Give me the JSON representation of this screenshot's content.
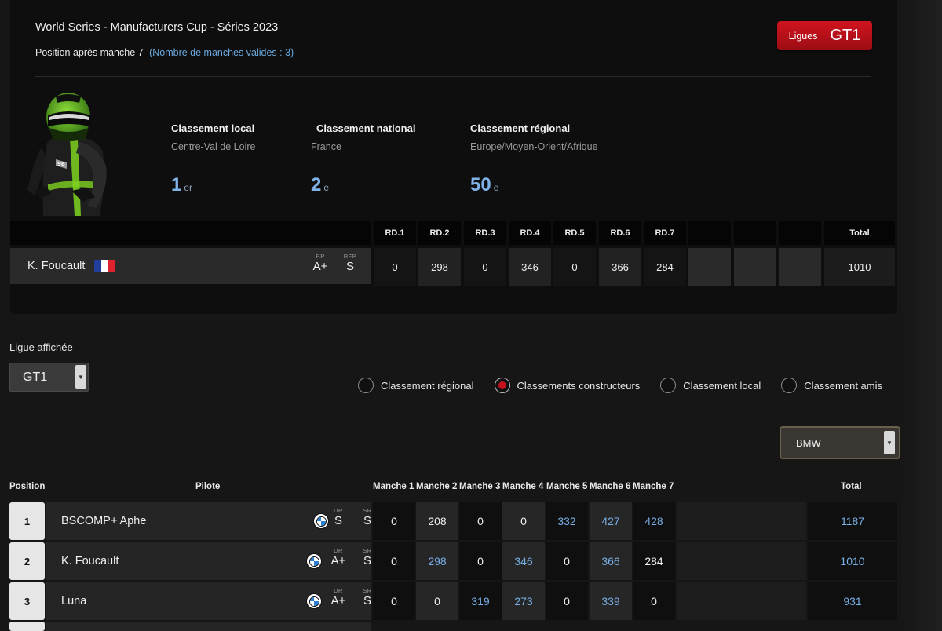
{
  "header": {
    "series_title": "World Series - Manufacturers Cup - Séries 2023",
    "position_text": "Position après manche 7",
    "valid_rounds_text": "(Nombre de manches valides : 3)"
  },
  "league_badge": {
    "label": "Ligues",
    "value": "GT1"
  },
  "rankings": {
    "local": {
      "heading": "Classement local",
      "area": "Centre-Val de Loire",
      "rank": "1",
      "suffix": "er"
    },
    "national": {
      "heading": "Classement national",
      "area": "France",
      "rank": "2",
      "suffix": "e"
    },
    "regional": {
      "heading": "Classement régional",
      "area": "Europe/Moyen-Orient/Afrique",
      "rank": "50",
      "suffix": "e"
    }
  },
  "driver_summary": {
    "name": "K. Foucault",
    "rating_labels": [
      "RP",
      "RFP"
    ],
    "rating_values": [
      "A+",
      "S"
    ],
    "round_headers": [
      "RD.1",
      "RD.2",
      "RD.3",
      "RD.4",
      "RD.5",
      "RD.6",
      "RD.7"
    ],
    "round_values": [
      "0",
      "298",
      "0",
      "346",
      "0",
      "366",
      "284"
    ],
    "total_header": "Total",
    "total": "1010"
  },
  "league_filter": {
    "label": "Ligue affichée",
    "selected": "GT1"
  },
  "view_options": [
    {
      "label": "Classement régional",
      "selected": false
    },
    {
      "label": "Classements constructeurs",
      "selected": true
    },
    {
      "label": "Classement local",
      "selected": false
    },
    {
      "label": "Classement amis",
      "selected": false
    }
  ],
  "manufacturer_filter": {
    "selected": "BMW"
  },
  "standings": {
    "headers": {
      "position": "Position",
      "pilot": "Pilote",
      "rounds": [
        "Manche 1",
        "Manche 2",
        "Manche 3",
        "Manche 4",
        "Manche 5",
        "Manche 6",
        "Manche 7"
      ],
      "total": "Total"
    },
    "rating_labels": [
      "DR",
      "SR"
    ],
    "rows": [
      {
        "position": "1",
        "pilot": "BSCOMP+ Aphe",
        "dr": "S",
        "sr": "S",
        "rounds": [
          "0",
          "208",
          "0",
          "0",
          "332",
          "427",
          "428"
        ],
        "valid": [
          false,
          false,
          false,
          false,
          true,
          true,
          true
        ],
        "total": "1187"
      },
      {
        "position": "2",
        "pilot": "K. Foucault",
        "dr": "A+",
        "sr": "S",
        "rounds": [
          "0",
          "298",
          "0",
          "346",
          "0",
          "366",
          "284"
        ],
        "valid": [
          false,
          true,
          false,
          true,
          false,
          true,
          false
        ],
        "total": "1010"
      },
      {
        "position": "3",
        "pilot": "Luna",
        "dr": "A+",
        "sr": "S",
        "rounds": [
          "0",
          "0",
          "319",
          "273",
          "0",
          "339",
          "0"
        ],
        "valid": [
          false,
          false,
          true,
          true,
          false,
          true,
          false
        ],
        "total": "931"
      }
    ]
  },
  "colors": {
    "accent_red": "#c4121c",
    "valid_blue": "#78b0e6",
    "flag": [
      "#1f3f9a",
      "#ffffff",
      "#e0222e"
    ],
    "bmw": [
      "#2d7fd6",
      "#ffffff"
    ]
  }
}
